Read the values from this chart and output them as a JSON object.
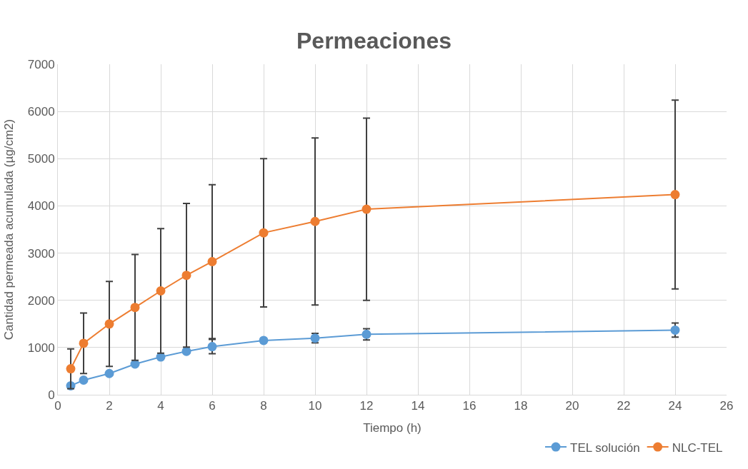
{
  "chart_data": {
    "type": "line",
    "title": "Permeaciones",
    "xlabel": "Tiempo (h)",
    "ylabel": "Cantidad permeada acumulada (µg/cm2)",
    "x": [
      0.5,
      1,
      2,
      3,
      4,
      5,
      6,
      8,
      10,
      12,
      24
    ],
    "xlim": [
      0,
      26
    ],
    "xticks": [
      0,
      2,
      4,
      6,
      8,
      10,
      12,
      14,
      16,
      18,
      20,
      22,
      24,
      26
    ],
    "ylim": [
      0,
      7000
    ],
    "yticks": [
      0,
      1000,
      2000,
      3000,
      4000,
      5000,
      6000,
      7000
    ],
    "grid": true,
    "legend": "bottom right",
    "marker": "circle",
    "line_style": "solid",
    "series": [
      {
        "name": "TEL solución",
        "color": "#5b9bd5",
        "values": [
          190,
          310,
          450,
          650,
          800,
          920,
          1020,
          1150,
          1200,
          1280,
          1370
        ],
        "errors": [
          null,
          null,
          null,
          null,
          null,
          null,
          150,
          null,
          100,
          120,
          150
        ]
      },
      {
        "name": "NLC-TEL",
        "color": "#ed7d31",
        "values": [
          550,
          1090,
          1500,
          1850,
          2200,
          2530,
          2820,
          3430,
          3670,
          3930,
          4240
        ],
        "errors": [
          420,
          640,
          900,
          1120,
          1320,
          1520,
          1630,
          1570,
          1770,
          1930,
          2000
        ]
      }
    ]
  }
}
